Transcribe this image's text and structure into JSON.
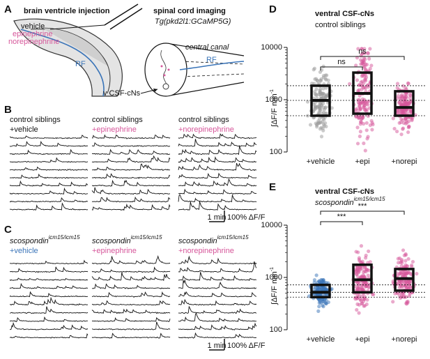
{
  "panels": {
    "A": {
      "label": "A",
      "left_title": "brain ventricle injection",
      "injected": [
        "vehicle",
        "epinephrine",
        "norepinephrine"
      ],
      "rf": "RF",
      "right_title": "spinal cord imaging",
      "line": "Tg(pkd2l1:GCaMP5G)",
      "canal": "central canal",
      "rf2": "RF",
      "cells": "v CSF-cNs"
    },
    "B": {
      "label": "B",
      "columns": [
        {
          "genotype": "control siblings",
          "treatment": "+vehicle"
        },
        {
          "genotype": "control siblings",
          "treatment": "+epinephrine"
        },
        {
          "genotype": "control siblings",
          "treatment": "+norepinephrine"
        }
      ],
      "time_scale": "1 min",
      "amp_scale": "100% ΔF/F"
    },
    "C": {
      "label": "C",
      "columns": [
        {
          "genotype": "scospondin",
          "sup": "icm15/icm15",
          "treatment": "+vehicle"
        },
        {
          "genotype": "scospondin",
          "sup": "icm15/icm15",
          "treatment": "+epinephrine"
        },
        {
          "genotype": "scospondin",
          "sup": "icm15/icm15",
          "treatment": "+norepinephrine"
        }
      ],
      "time_scale": "1 min",
      "amp_scale": "100% ΔF/F"
    }
  },
  "chart_data": [
    {
      "type": "box",
      "label": "D",
      "title": "ventral CSF-cNs",
      "subtitle": "control siblings",
      "ylabel": "∫ΔF/F min",
      "ylabel_sup": "-1",
      "categories": [
        "+vehicle",
        "+epi",
        "+norepi"
      ],
      "colors": [
        "#9a9a9a",
        "#d6569a",
        "#d6569a"
      ],
      "q1": [
        494,
        540,
        494
      ],
      "median": [
        970,
        1320,
        710
      ],
      "q3": [
        1850,
        3300,
        1450
      ],
      "ylim": [
        100,
        10000
      ],
      "yticks": [
        100,
        1000,
        10000
      ],
      "log": true,
      "annotations": [
        "ns",
        "ns"
      ],
      "annotation_color": "#333333"
    },
    {
      "type": "box",
      "label": "E",
      "title": "ventral CSF-cNs",
      "subtitle": "scospondin",
      "subtitle_sup": "icm15/icm15",
      "ylabel": "∫ΔF/F min",
      "ylabel_sup": "-1",
      "categories": [
        "+vehicle",
        "+epi",
        "+norepi"
      ],
      "colors": [
        "#3a74b8",
        "#d6569a",
        "#d6569a"
      ],
      "q1": [
        420,
        520,
        560
      ],
      "median": [
        520,
        900,
        950
      ],
      "q3": [
        720,
        1750,
        1450
      ],
      "ylim": [
        100,
        10000
      ],
      "yticks": [
        100,
        1000,
        10000
      ],
      "log": true,
      "annotations": [
        "***",
        "***"
      ],
      "annotation_color": "#3a74b8"
    }
  ]
}
